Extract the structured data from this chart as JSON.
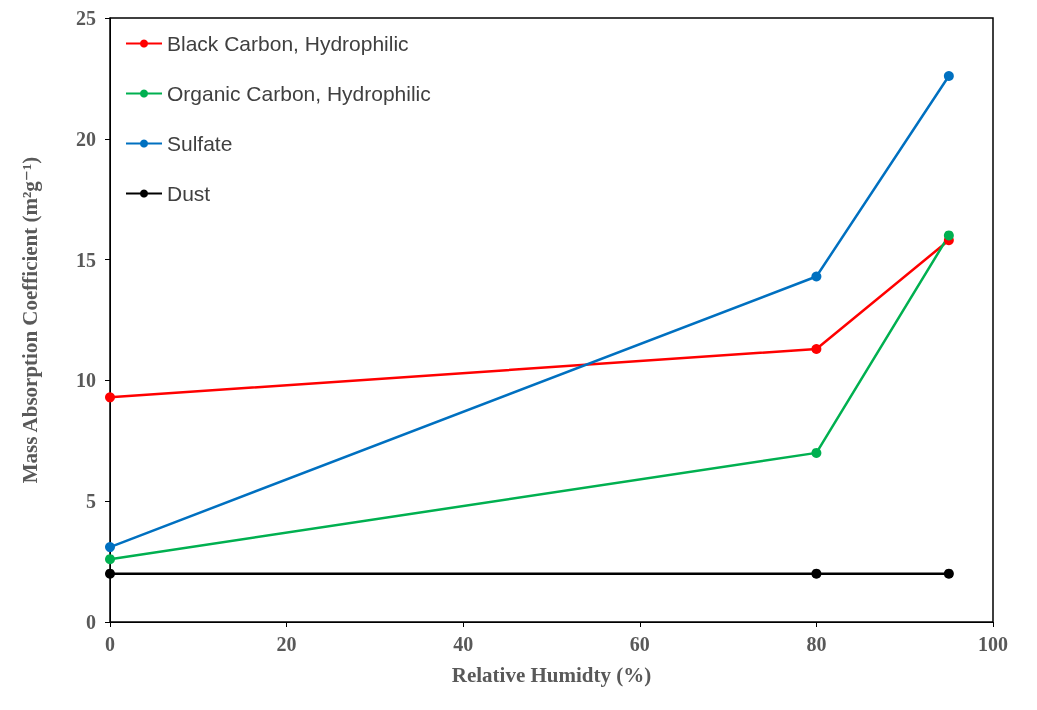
{
  "chart_data": {
    "type": "line",
    "xlabel": "Relative Humidty (%)",
    "ylabel": "Mass Absorption Coefficient (m²g⁻¹)",
    "x": [
      0,
      80,
      95
    ],
    "series": [
      {
        "name": "Black Carbon, Hydrophilic",
        "color": "#ff0000",
        "values": [
          9.3,
          11.3,
          15.8
        ]
      },
      {
        "name": "Organic Carbon, Hydrophilic",
        "color": "#00b050",
        "values": [
          2.6,
          7.0,
          16.0
        ]
      },
      {
        "name": "Sulfate",
        "color": "#0070c0",
        "values": [
          3.1,
          14.3,
          22.6
        ]
      },
      {
        "name": "Dust",
        "color": "#000000",
        "values": [
          2.0,
          2.0,
          2.0
        ]
      }
    ],
    "xlim": [
      0,
      100
    ],
    "xticks": [
      0,
      20,
      40,
      60,
      80,
      100
    ],
    "ylim": [
      0,
      25
    ],
    "yticks": [
      0,
      5,
      10,
      15,
      20,
      25
    ],
    "grid": false,
    "legend": "top left",
    "marker": "circle",
    "line_style": "solid"
  }
}
